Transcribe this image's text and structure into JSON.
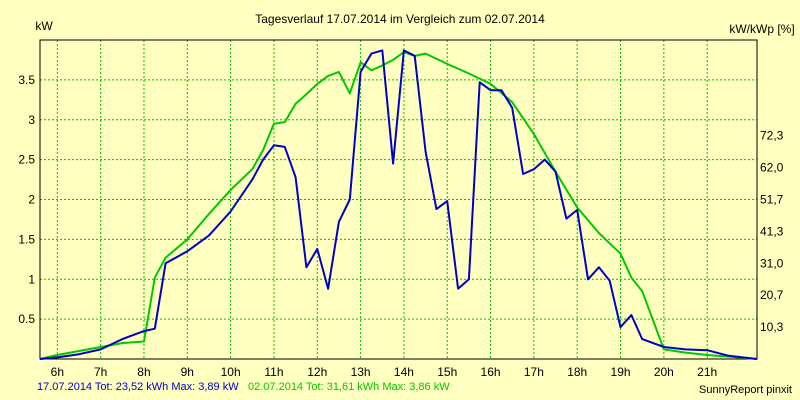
{
  "chart_data": {
    "type": "line",
    "title": "Tagesverlauf 17.07.2014 im Vergleich zum 02.07.2014",
    "ylabel_left": "kW",
    "ylabel_right": "kW/kWp [%]",
    "grid": true,
    "ylim": [
      0,
      4.0
    ],
    "xlim": [
      5.6,
      22.15
    ],
    "x_ticks": [
      6,
      7,
      8,
      9,
      10,
      11,
      12,
      13,
      14,
      15,
      16,
      17,
      18,
      19,
      20,
      21
    ],
    "x_tick_labels": [
      "6h",
      "7h",
      "8h",
      "9h",
      "10h",
      "11h",
      "12h",
      "13h",
      "14h",
      "15h",
      "16h",
      "17h",
      "18h",
      "19h",
      "20h",
      "21h"
    ],
    "y_ticks_left": [
      0.5,
      1,
      1.5,
      2,
      2.5,
      3,
      3.5
    ],
    "y_tick_labels_left": [
      "0.5",
      "1",
      "1.5",
      "2",
      "2.5",
      "3",
      "3.5"
    ],
    "y_ticks_right": [
      0.4,
      0.8,
      1.2,
      1.6,
      2.0,
      2.4,
      2.8
    ],
    "y_tick_labels_right": [
      "10,3",
      "20,7",
      "31,0",
      "41,3",
      "51,7",
      "62,0",
      "72,3"
    ],
    "series": [
      {
        "name": "17.07.2014",
        "color": "#0000c8",
        "x": [
          5.6,
          6.0,
          6.5,
          7.0,
          7.5,
          8.0,
          8.25,
          8.5,
          9.0,
          9.5,
          10.0,
          10.5,
          10.75,
          11.0,
          11.25,
          11.5,
          11.75,
          12.0,
          12.25,
          12.5,
          12.75,
          13.0,
          13.25,
          13.5,
          13.75,
          14.0,
          14.25,
          14.5,
          14.75,
          15.0,
          15.25,
          15.5,
          15.75,
          16.0,
          16.25,
          16.5,
          16.75,
          17.0,
          17.25,
          17.5,
          17.75,
          18.0,
          18.25,
          18.5,
          18.75,
          19.0,
          19.25,
          19.5,
          20.0,
          20.5,
          21.0,
          21.5,
          22.15
        ],
        "y": [
          0,
          0.02,
          0.06,
          0.12,
          0.25,
          0.35,
          0.38,
          1.2,
          1.35,
          1.55,
          1.85,
          2.25,
          2.5,
          2.68,
          2.66,
          2.28,
          1.15,
          1.38,
          0.88,
          1.72,
          2.0,
          3.6,
          3.83,
          3.87,
          2.45,
          3.87,
          3.8,
          2.6,
          1.88,
          1.98,
          0.88,
          1.0,
          3.47,
          3.37,
          3.37,
          3.15,
          2.32,
          2.38,
          2.5,
          2.35,
          1.76,
          1.87,
          1.0,
          1.15,
          0.98,
          0.4,
          0.55,
          0.25,
          0.15,
          0.12,
          0.11,
          0.04,
          0
        ]
      },
      {
        "name": "02.07.2014",
        "color": "#00c800",
        "x": [
          5.6,
          6.0,
          6.5,
          7.0,
          7.5,
          8.0,
          8.25,
          8.5,
          9.0,
          9.5,
          10.0,
          10.5,
          10.75,
          11.0,
          11.25,
          11.5,
          11.75,
          12.0,
          12.25,
          12.5,
          12.75,
          13.0,
          13.25,
          13.5,
          13.75,
          14.0,
          14.25,
          14.5,
          15.0,
          15.5,
          16.0,
          16.5,
          17.0,
          17.5,
          18.0,
          18.5,
          19.0,
          19.25,
          19.5,
          20.0,
          20.5,
          21.0,
          21.5,
          22.15
        ],
        "y": [
          0,
          0.05,
          0.1,
          0.15,
          0.2,
          0.22,
          1.02,
          1.27,
          1.5,
          1.82,
          2.12,
          2.38,
          2.62,
          2.95,
          2.97,
          3.2,
          3.32,
          3.45,
          3.55,
          3.6,
          3.33,
          3.72,
          3.62,
          3.68,
          3.75,
          3.85,
          3.8,
          3.83,
          3.7,
          3.58,
          3.45,
          3.22,
          2.82,
          2.35,
          1.9,
          1.58,
          1.32,
          1.02,
          0.85,
          0.12,
          0.08,
          0.05,
          0.03,
          0
        ]
      }
    ]
  },
  "footer": {
    "series1_stats": "17.07.2014 Tot: 23,52 kWh Max: 3,89 kW",
    "series2_stats": "02.07.2014 Tot: 31,61 kWh Max: 3,86 kW",
    "credit": "SunnyReport pinxit"
  }
}
